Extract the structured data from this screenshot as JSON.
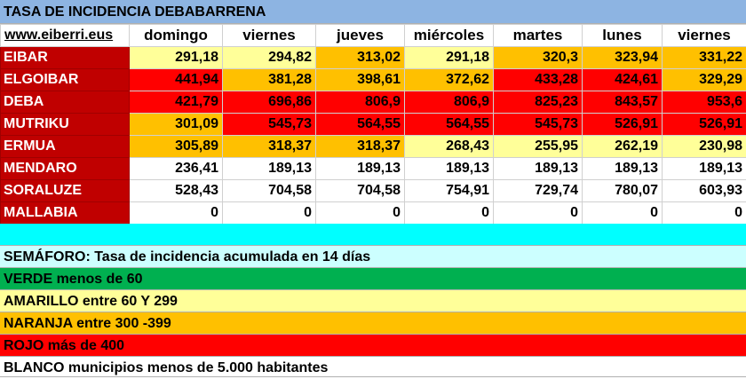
{
  "title": "TASA DE INCIDENCIA DEBABARRENA",
  "site_link": "www.eiberri.eus",
  "days": [
    "domingo",
    "viernes",
    "jueves",
    "miércoles",
    "martes",
    "lunes",
    "viernes"
  ],
  "colors": {
    "title_bg": "#8db4e2",
    "town_bg": "#c00000",
    "green": "#00b050",
    "yellow": "#ffff99",
    "orange": "#ffc000",
    "red": "#ff0000",
    "white": "#ffffff",
    "cyan": "#00ffff",
    "light_cyan": "#ccffff"
  },
  "rows": [
    {
      "town": "EIBAR",
      "values": [
        "291,18",
        "294,82",
        "313,02",
        "291,18",
        "320,3",
        "323,94",
        "331,22"
      ],
      "levels": [
        "yellow",
        "yellow",
        "orange",
        "yellow",
        "orange",
        "orange",
        "orange"
      ]
    },
    {
      "town": "ELGOIBAR",
      "values": [
        "441,94",
        "381,28",
        "398,61",
        "372,62",
        "433,28",
        "424,61",
        "329,29"
      ],
      "levels": [
        "red",
        "orange",
        "orange",
        "orange",
        "red",
        "red",
        "orange"
      ]
    },
    {
      "town": "DEBA",
      "values": [
        "421,79",
        "696,86",
        "806,9",
        "806,9",
        "825,23",
        "843,57",
        "953,6"
      ],
      "levels": [
        "red",
        "red",
        "red",
        "red",
        "red",
        "red",
        "red"
      ]
    },
    {
      "town": "MUTRIKU",
      "values": [
        "301,09",
        "545,73",
        "564,55",
        "564,55",
        "545,73",
        "526,91",
        "526,91"
      ],
      "levels": [
        "orange",
        "red",
        "red",
        "red",
        "red",
        "red",
        "red"
      ]
    },
    {
      "town": "ERMUA",
      "values": [
        "305,89",
        "318,37",
        "318,37",
        "268,43",
        "255,95",
        "262,19",
        "230,98"
      ],
      "levels": [
        "orange",
        "orange",
        "orange",
        "yellow",
        "yellow",
        "yellow",
        "yellow"
      ]
    },
    {
      "town": "MENDARO",
      "values": [
        "236,41",
        "189,13",
        "189,13",
        "189,13",
        "189,13",
        "189,13",
        "189,13"
      ],
      "levels": [
        "white",
        "white",
        "white",
        "white",
        "white",
        "white",
        "white"
      ]
    },
    {
      "town": "SORALUZE",
      "values": [
        "528,43",
        "704,58",
        "704,58",
        "754,91",
        "729,74",
        "780,07",
        "603,93"
      ],
      "levels": [
        "white",
        "white",
        "white",
        "white",
        "white",
        "white",
        "white"
      ]
    },
    {
      "town": "MALLABIA",
      "values": [
        "0",
        "0",
        "0",
        "0",
        "0",
        "0",
        "0"
      ],
      "levels": [
        "white",
        "white",
        "white",
        "white",
        "white",
        "white",
        "white"
      ]
    }
  ],
  "legend": {
    "semaforo": "SEMÁFORO:  Tasa de incidencia acumulada en 14 días",
    "verde": "VERDE menos de 60",
    "amarillo": "AMARILLO entre 60 Y 299",
    "naranja": "NARANJA entre 300 -399",
    "rojo": "ROJO más de 400",
    "blanco": "BLANCO municipios menos de 5.000 habitantes"
  }
}
